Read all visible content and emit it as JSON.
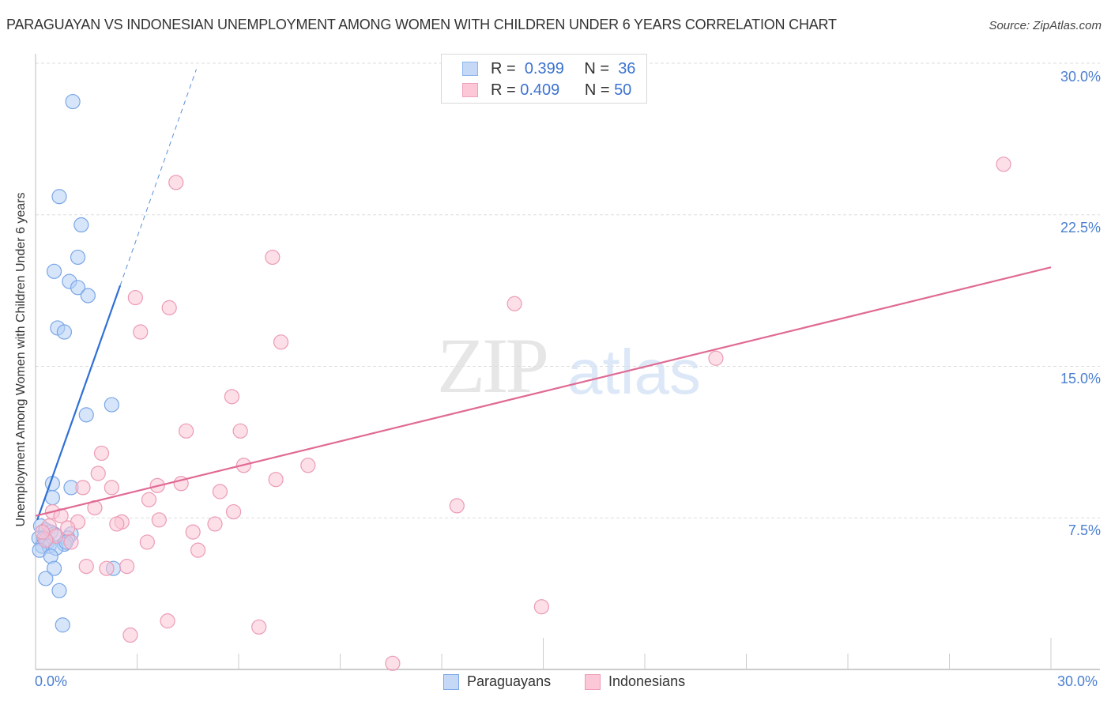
{
  "header": {
    "title": "PARAGUAYAN VS INDONESIAN UNEMPLOYMENT AMONG WOMEN WITH CHILDREN UNDER 6 YEARS CORRELATION CHART",
    "source": "Source: ZipAtlas.com"
  },
  "legend": {
    "rows": [
      {
        "r_label": "R =",
        "r_value": "0.399",
        "n_label": "N =",
        "n_value": "36",
        "color": "#8ab4f0",
        "fill": "#c5d9f7"
      },
      {
        "r_label": "R =",
        "r_value": "0.409",
        "n_label": "N =",
        "n_value": "50",
        "color": "#f0a0b8",
        "fill": "#fcc8d8"
      }
    ],
    "bottom": [
      {
        "label": "Paraguayans",
        "color": "#7aa6e6",
        "fill": "#c5d9f7"
      },
      {
        "label": "Indonesians",
        "color": "#eb9bb5",
        "fill": "#fcc8d8"
      }
    ]
  },
  "watermark": {
    "zip": "ZIP",
    "atlas": "atlas"
  },
  "axes": {
    "ylabel": "Unemployment Among Women with Children Under 6 years",
    "yticks": [
      "30.0%",
      "22.5%",
      "15.0%",
      "7.5%"
    ],
    "xticks": [
      "0.0%",
      "30.0%"
    ]
  },
  "chart_data": {
    "type": "scatter",
    "title": "PARAGUAYAN VS INDONESIAN UNEMPLOYMENT AMONG WOMEN WITH CHILDREN UNDER 6 YEARS CORRELATION CHART",
    "xlabel": "",
    "ylabel": "Unemployment Among Women with Children Under 6 years",
    "xlim": [
      0,
      30
    ],
    "ylim": [
      0,
      30
    ],
    "grid": true,
    "legend_position": "top-center and bottom",
    "series": [
      {
        "name": "Paraguayans",
        "color": "#5b8fd8",
        "R": 0.399,
        "N": 36,
        "trend": {
          "x0": 0.05,
          "y0": 7.4,
          "x1": 2.5,
          "y1": 19.0,
          "dashed_to": {
            "x": 4.75,
            "y": 29.7
          }
        },
        "points": [
          [
            1.1,
            28.1
          ],
          [
            0.7,
            23.4
          ],
          [
            1.35,
            22.0
          ],
          [
            1.25,
            20.4
          ],
          [
            0.55,
            19.7
          ],
          [
            1.0,
            19.2
          ],
          [
            1.25,
            18.9
          ],
          [
            1.55,
            18.5
          ],
          [
            0.65,
            16.9
          ],
          [
            0.85,
            16.7
          ],
          [
            2.25,
            13.1
          ],
          [
            1.5,
            12.6
          ],
          [
            0.5,
            9.2
          ],
          [
            1.05,
            9.0
          ],
          [
            0.5,
            8.5
          ],
          [
            0.15,
            7.1
          ],
          [
            0.3,
            6.9
          ],
          [
            0.45,
            6.8
          ],
          [
            0.55,
            6.7
          ],
          [
            1.05,
            6.7
          ],
          [
            0.1,
            6.5
          ],
          [
            0.25,
            6.5
          ],
          [
            0.35,
            6.3
          ],
          [
            0.95,
            6.5
          ],
          [
            0.85,
            6.2
          ],
          [
            0.2,
            6.1
          ],
          [
            0.4,
            6.1
          ],
          [
            0.6,
            6.0
          ],
          [
            0.12,
            5.9
          ],
          [
            0.45,
            5.6
          ],
          [
            0.55,
            5.0
          ],
          [
            2.3,
            5.0
          ],
          [
            0.3,
            4.5
          ],
          [
            0.7,
            3.9
          ],
          [
            0.8,
            2.2
          ],
          [
            0.9,
            6.3
          ]
        ]
      },
      {
        "name": "Indonesians",
        "color": "#e8779d",
        "R": 0.409,
        "N": 50,
        "trend": {
          "x0": 0.0,
          "y0": 7.6,
          "x1": 30.0,
          "y1": 19.9
        },
        "points": [
          [
            28.6,
            25.0
          ],
          [
            4.15,
            24.1
          ],
          [
            7.0,
            20.4
          ],
          [
            2.95,
            18.4
          ],
          [
            3.95,
            17.9
          ],
          [
            14.15,
            18.1
          ],
          [
            3.1,
            16.7
          ],
          [
            7.25,
            16.2
          ],
          [
            20.1,
            15.4
          ],
          [
            5.8,
            13.5
          ],
          [
            4.45,
            11.8
          ],
          [
            6.05,
            11.8
          ],
          [
            1.95,
            10.7
          ],
          [
            6.15,
            10.1
          ],
          [
            8.05,
            10.1
          ],
          [
            1.85,
            9.7
          ],
          [
            2.25,
            9.0
          ],
          [
            3.6,
            9.1
          ],
          [
            4.3,
            9.2
          ],
          [
            7.1,
            9.4
          ],
          [
            1.4,
            9.0
          ],
          [
            5.45,
            8.8
          ],
          [
            3.35,
            8.4
          ],
          [
            12.45,
            8.1
          ],
          [
            1.75,
            8.0
          ],
          [
            5.85,
            7.8
          ],
          [
            0.5,
            7.8
          ],
          [
            0.75,
            7.6
          ],
          [
            1.25,
            7.3
          ],
          [
            3.65,
            7.4
          ],
          [
            2.55,
            7.3
          ],
          [
            2.4,
            7.2
          ],
          [
            5.3,
            7.2
          ],
          [
            0.95,
            7.0
          ],
          [
            4.65,
            6.8
          ],
          [
            0.4,
            7.1
          ],
          [
            0.6,
            6.6
          ],
          [
            0.3,
            6.4
          ],
          [
            1.05,
            6.3
          ],
          [
            3.3,
            6.3
          ],
          [
            4.8,
            5.9
          ],
          [
            1.5,
            5.1
          ],
          [
            2.1,
            5.0
          ],
          [
            2.7,
            5.1
          ],
          [
            14.95,
            3.1
          ],
          [
            3.9,
            2.4
          ],
          [
            6.6,
            2.1
          ],
          [
            2.8,
            1.7
          ],
          [
            10.55,
            0.3
          ],
          [
            0.2,
            6.8
          ]
        ]
      }
    ]
  }
}
